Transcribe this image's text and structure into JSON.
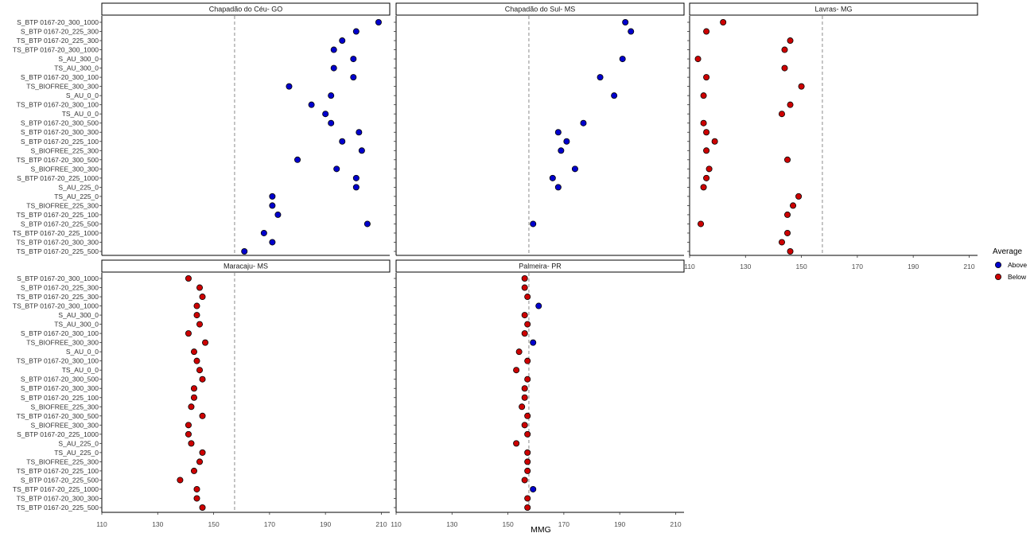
{
  "chart_data": {
    "type": "scatter",
    "title": "",
    "xlabel": "MMG",
    "ylabel": "",
    "xlim": [
      110,
      213
    ],
    "xticks": [
      110,
      130,
      150,
      170,
      190,
      210
    ],
    "grid": false,
    "legend": {
      "title": "Average",
      "position": "right",
      "entries": [
        {
          "label": "Above",
          "color": "#0000cd"
        },
        {
          "label": "Below",
          "color": "#cd0000"
        }
      ]
    },
    "categories": [
      "S_BTP 0167-20_300_1000",
      "S_BTP 0167-20_225_300",
      "TS_BTP 0167-20_225_300",
      "TS_BTP 0167-20_300_1000",
      "S_AU_300_0",
      "TS_AU_300_0",
      "S_BTP 0167-20_300_100",
      "TS_BIOFREE_300_300",
      "S_AU_0_0",
      "TS_BTP 0167-20_300_100",
      "TS_AU_0_0",
      "S_BTP 0167-20_300_500",
      "S_BTP 0167-20_300_300",
      "S_BTP 0167-20_225_100",
      "S_BIOFREE_225_300",
      "TS_BTP 0167-20_300_500",
      "S_BIOFREE_300_300",
      "S_BTP 0167-20_225_1000",
      "S_AU_225_0",
      "TS_AU_225_0",
      "TS_BIOFREE_225_300",
      "TS_BTP 0167-20_225_100",
      "S_BTP 0167-20_225_500",
      "TS_BTP 0167-20_225_1000",
      "TS_BTP 0167-20_300_300",
      "TS_BTP 0167-20_225_500"
    ],
    "panels": [
      {
        "name": "Chapadão do Céu- GO",
        "reference": 157.5,
        "values": [
          209,
          201,
          196,
          193,
          200,
          193,
          200,
          177,
          192,
          185,
          190,
          192,
          202,
          196,
          203,
          180,
          194,
          201,
          201,
          171,
          171,
          173,
          205,
          168,
          171,
          161
        ],
        "groups": [
          "Above",
          "Above",
          "Above",
          "Above",
          "Above",
          "Above",
          "Above",
          "Above",
          "Above",
          "Above",
          "Above",
          "Above",
          "Above",
          "Above",
          "Above",
          "Above",
          "Above",
          "Above",
          "Above",
          "Above",
          "Above",
          "Above",
          "Above",
          "Above",
          "Above",
          "Above"
        ]
      },
      {
        "name": "Chapadão do Sul- MS",
        "reference": 157.5,
        "values": [
          192,
          194,
          null,
          null,
          191,
          null,
          183,
          null,
          188,
          null,
          null,
          177,
          168,
          171,
          169,
          null,
          174,
          166,
          168,
          null,
          null,
          null,
          159,
          null,
          null,
          null
        ],
        "groups": [
          "Above",
          "Above",
          null,
          null,
          "Above",
          null,
          "Above",
          null,
          "Above",
          null,
          null,
          "Above",
          "Above",
          "Above",
          "Above",
          null,
          "Above",
          "Above",
          "Above",
          null,
          null,
          null,
          "Above",
          null,
          null,
          null
        ]
      },
      {
        "name": "Lavras- MG",
        "reference": 157.5,
        "values": [
          122,
          116,
          146,
          144,
          113,
          144,
          116,
          150,
          115,
          146,
          143,
          115,
          116,
          119,
          116,
          145,
          117,
          116,
          115,
          149,
          147,
          145,
          114,
          145,
          143,
          146
        ],
        "groups": [
          "Below",
          "Below",
          "Below",
          "Below",
          "Below",
          "Below",
          "Below",
          "Below",
          "Below",
          "Below",
          "Below",
          "Below",
          "Below",
          "Below",
          "Below",
          "Below",
          "Below",
          "Below",
          "Below",
          "Below",
          "Below",
          "Below",
          "Below",
          "Below",
          "Below",
          "Below"
        ]
      },
      {
        "name": "Maracaju- MS",
        "reference": 157.5,
        "values": [
          141,
          145,
          146,
          144,
          144,
          145,
          141,
          147,
          143,
          144,
          145,
          146,
          143,
          143,
          142,
          146,
          141,
          141,
          142,
          146,
          145,
          143,
          138,
          144,
          144,
          146
        ],
        "groups": [
          "Below",
          "Below",
          "Below",
          "Below",
          "Below",
          "Below",
          "Below",
          "Below",
          "Below",
          "Below",
          "Below",
          "Below",
          "Below",
          "Below",
          "Below",
          "Below",
          "Below",
          "Below",
          "Below",
          "Below",
          "Below",
          "Below",
          "Below",
          "Below",
          "Below",
          "Below"
        ]
      },
      {
        "name": "Palmeira- PR",
        "reference": 157.5,
        "values": [
          156,
          156,
          157,
          161,
          156,
          157,
          156,
          159,
          154,
          157,
          153,
          157,
          156,
          156,
          155,
          157,
          156,
          157,
          153,
          157,
          157,
          157,
          156,
          159,
          157,
          157
        ],
        "groups": [
          "Below",
          "Below",
          "Below",
          "Above",
          "Below",
          "Below",
          "Below",
          "Above",
          "Below",
          "Below",
          "Below",
          "Below",
          "Below",
          "Below",
          "Below",
          "Below",
          "Below",
          "Below",
          "Below",
          "Below",
          "Below",
          "Below",
          "Below",
          "Above",
          "Below",
          "Below"
        ]
      }
    ]
  }
}
